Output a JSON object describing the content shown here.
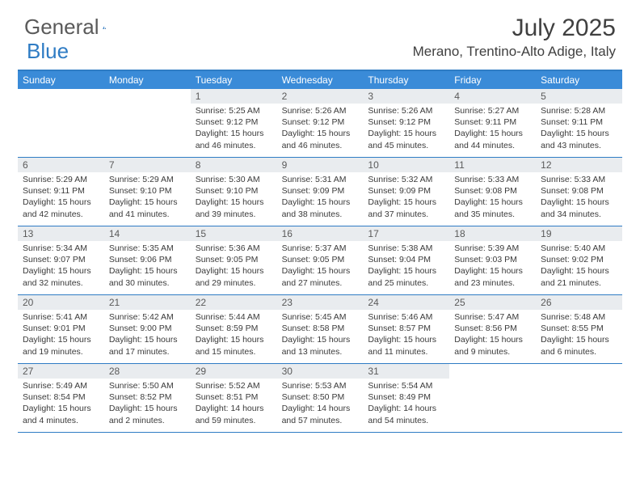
{
  "brand": {
    "name1": "General",
    "name2": "Blue"
  },
  "title": "July 2025",
  "location": "Merano, Trentino-Alto Adige, Italy",
  "colors": {
    "accent": "#3a8bd8",
    "accent_border": "#2f7cc4",
    "num_bg": "#e9ecef",
    "text": "#3a3a3a",
    "bg": "#ffffff"
  },
  "daynames": [
    "Sunday",
    "Monday",
    "Tuesday",
    "Wednesday",
    "Thursday",
    "Friday",
    "Saturday"
  ],
  "weeks": [
    [
      {
        "empty": true
      },
      {
        "empty": true
      },
      {
        "num": "1",
        "sunrise": "Sunrise: 5:25 AM",
        "sunset": "Sunset: 9:12 PM",
        "daylight": "Daylight: 15 hours and 46 minutes."
      },
      {
        "num": "2",
        "sunrise": "Sunrise: 5:26 AM",
        "sunset": "Sunset: 9:12 PM",
        "daylight": "Daylight: 15 hours and 46 minutes."
      },
      {
        "num": "3",
        "sunrise": "Sunrise: 5:26 AM",
        "sunset": "Sunset: 9:12 PM",
        "daylight": "Daylight: 15 hours and 45 minutes."
      },
      {
        "num": "4",
        "sunrise": "Sunrise: 5:27 AM",
        "sunset": "Sunset: 9:11 PM",
        "daylight": "Daylight: 15 hours and 44 minutes."
      },
      {
        "num": "5",
        "sunrise": "Sunrise: 5:28 AM",
        "sunset": "Sunset: 9:11 PM",
        "daylight": "Daylight: 15 hours and 43 minutes."
      }
    ],
    [
      {
        "num": "6",
        "sunrise": "Sunrise: 5:29 AM",
        "sunset": "Sunset: 9:11 PM",
        "daylight": "Daylight: 15 hours and 42 minutes."
      },
      {
        "num": "7",
        "sunrise": "Sunrise: 5:29 AM",
        "sunset": "Sunset: 9:10 PM",
        "daylight": "Daylight: 15 hours and 41 minutes."
      },
      {
        "num": "8",
        "sunrise": "Sunrise: 5:30 AM",
        "sunset": "Sunset: 9:10 PM",
        "daylight": "Daylight: 15 hours and 39 minutes."
      },
      {
        "num": "9",
        "sunrise": "Sunrise: 5:31 AM",
        "sunset": "Sunset: 9:09 PM",
        "daylight": "Daylight: 15 hours and 38 minutes."
      },
      {
        "num": "10",
        "sunrise": "Sunrise: 5:32 AM",
        "sunset": "Sunset: 9:09 PM",
        "daylight": "Daylight: 15 hours and 37 minutes."
      },
      {
        "num": "11",
        "sunrise": "Sunrise: 5:33 AM",
        "sunset": "Sunset: 9:08 PM",
        "daylight": "Daylight: 15 hours and 35 minutes."
      },
      {
        "num": "12",
        "sunrise": "Sunrise: 5:33 AM",
        "sunset": "Sunset: 9:08 PM",
        "daylight": "Daylight: 15 hours and 34 minutes."
      }
    ],
    [
      {
        "num": "13",
        "sunrise": "Sunrise: 5:34 AM",
        "sunset": "Sunset: 9:07 PM",
        "daylight": "Daylight: 15 hours and 32 minutes."
      },
      {
        "num": "14",
        "sunrise": "Sunrise: 5:35 AM",
        "sunset": "Sunset: 9:06 PM",
        "daylight": "Daylight: 15 hours and 30 minutes."
      },
      {
        "num": "15",
        "sunrise": "Sunrise: 5:36 AM",
        "sunset": "Sunset: 9:05 PM",
        "daylight": "Daylight: 15 hours and 29 minutes."
      },
      {
        "num": "16",
        "sunrise": "Sunrise: 5:37 AM",
        "sunset": "Sunset: 9:05 PM",
        "daylight": "Daylight: 15 hours and 27 minutes."
      },
      {
        "num": "17",
        "sunrise": "Sunrise: 5:38 AM",
        "sunset": "Sunset: 9:04 PM",
        "daylight": "Daylight: 15 hours and 25 minutes."
      },
      {
        "num": "18",
        "sunrise": "Sunrise: 5:39 AM",
        "sunset": "Sunset: 9:03 PM",
        "daylight": "Daylight: 15 hours and 23 minutes."
      },
      {
        "num": "19",
        "sunrise": "Sunrise: 5:40 AM",
        "sunset": "Sunset: 9:02 PM",
        "daylight": "Daylight: 15 hours and 21 minutes."
      }
    ],
    [
      {
        "num": "20",
        "sunrise": "Sunrise: 5:41 AM",
        "sunset": "Sunset: 9:01 PM",
        "daylight": "Daylight: 15 hours and 19 minutes."
      },
      {
        "num": "21",
        "sunrise": "Sunrise: 5:42 AM",
        "sunset": "Sunset: 9:00 PM",
        "daylight": "Daylight: 15 hours and 17 minutes."
      },
      {
        "num": "22",
        "sunrise": "Sunrise: 5:44 AM",
        "sunset": "Sunset: 8:59 PM",
        "daylight": "Daylight: 15 hours and 15 minutes."
      },
      {
        "num": "23",
        "sunrise": "Sunrise: 5:45 AM",
        "sunset": "Sunset: 8:58 PM",
        "daylight": "Daylight: 15 hours and 13 minutes."
      },
      {
        "num": "24",
        "sunrise": "Sunrise: 5:46 AM",
        "sunset": "Sunset: 8:57 PM",
        "daylight": "Daylight: 15 hours and 11 minutes."
      },
      {
        "num": "25",
        "sunrise": "Sunrise: 5:47 AM",
        "sunset": "Sunset: 8:56 PM",
        "daylight": "Daylight: 15 hours and 9 minutes."
      },
      {
        "num": "26",
        "sunrise": "Sunrise: 5:48 AM",
        "sunset": "Sunset: 8:55 PM",
        "daylight": "Daylight: 15 hours and 6 minutes."
      }
    ],
    [
      {
        "num": "27",
        "sunrise": "Sunrise: 5:49 AM",
        "sunset": "Sunset: 8:54 PM",
        "daylight": "Daylight: 15 hours and 4 minutes."
      },
      {
        "num": "28",
        "sunrise": "Sunrise: 5:50 AM",
        "sunset": "Sunset: 8:52 PM",
        "daylight": "Daylight: 15 hours and 2 minutes."
      },
      {
        "num": "29",
        "sunrise": "Sunrise: 5:52 AM",
        "sunset": "Sunset: 8:51 PM",
        "daylight": "Daylight: 14 hours and 59 minutes."
      },
      {
        "num": "30",
        "sunrise": "Sunrise: 5:53 AM",
        "sunset": "Sunset: 8:50 PM",
        "daylight": "Daylight: 14 hours and 57 minutes."
      },
      {
        "num": "31",
        "sunrise": "Sunrise: 5:54 AM",
        "sunset": "Sunset: 8:49 PM",
        "daylight": "Daylight: 14 hours and 54 minutes."
      },
      {
        "empty": true
      },
      {
        "empty": true
      }
    ]
  ]
}
